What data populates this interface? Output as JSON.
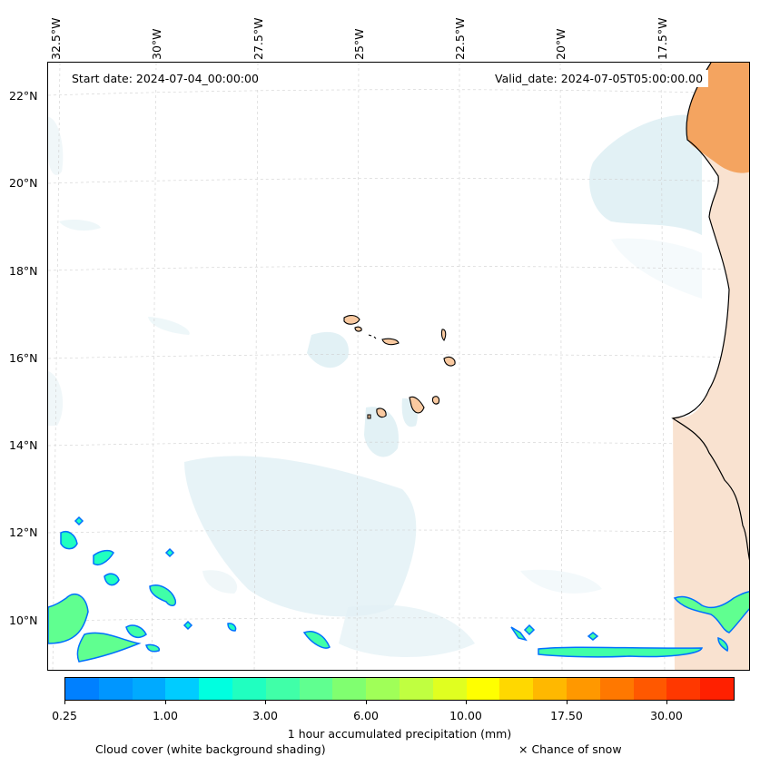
{
  "map": {
    "start_date": "Start date: 2024-07-04_00:00:00",
    "valid_date": "Valid_date: 2024-07-05T05:00:00.00",
    "lon_labels": [
      "32.5°W",
      "30°W",
      "27.5°W",
      "25°W",
      "22.5°W",
      "20°W",
      "17.5°W"
    ],
    "lat_labels": [
      "22°N",
      "20°N",
      "18°N",
      "16°N",
      "14°N",
      "12°N",
      "10°N"
    ],
    "gridlines": "dashed",
    "region": "Cape Verde Islands and West African coast",
    "colors": {
      "cloud": "#d8ecf2",
      "land_dry": "#f4a460",
      "land_light": "#f9d4b8",
      "coastline": "#000000"
    }
  },
  "colorbar": {
    "label": "1 hour accumulated precipitation (mm)",
    "tick_labels": [
      "0.25",
      "1.00",
      "3.00",
      "6.00",
      "10.00",
      "17.50",
      "30.00"
    ],
    "colors": [
      "#0080ff",
      "#0096ff",
      "#00aaff",
      "#00ccff",
      "#00ffe0",
      "#20ffc0",
      "#40ffa8",
      "#60ff90",
      "#80ff70",
      "#a0ff58",
      "#c0ff40",
      "#e0ff20",
      "#ffff00",
      "#ffd800",
      "#ffb800",
      "#ff9800",
      "#ff7800",
      "#ff5800",
      "#ff3800",
      "#ff2000"
    ]
  },
  "legend": {
    "cloud_cover": "Cloud cover (white background shading)",
    "snow": "× Chance of snow"
  }
}
